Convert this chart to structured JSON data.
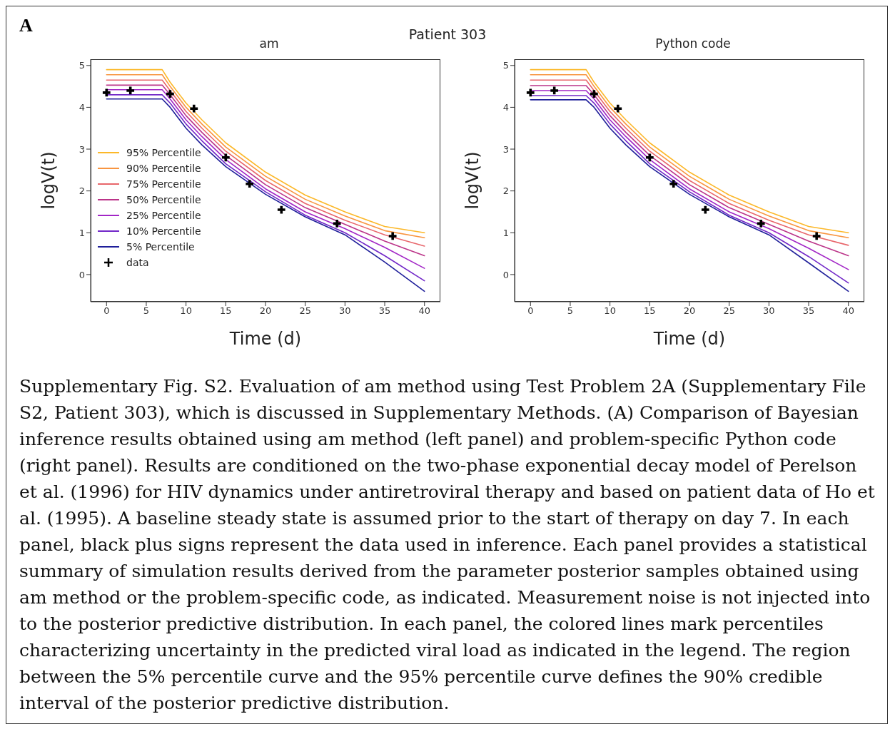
{
  "chart_data": [
    {
      "type": "line",
      "title": "am",
      "xlabel": "Time (d)",
      "ylabel": "logV(t)",
      "xlim": [
        -2,
        42
      ],
      "xticks": [
        0,
        5,
        10,
        15,
        20,
        25,
        30,
        35,
        40
      ],
      "ylim": [
        -0.65,
        5.15
      ],
      "yticks": [
        0,
        1,
        2,
        3,
        4,
        5
      ],
      "legend": "left",
      "line_style": "solid",
      "marker": "none",
      "annotations": [
        "A",
        "Patient 303",
        "Supplementary Fig. S2. Evaluation of am method using Test Problem 2A (Supplementary File S2, Patient 303), which is discussed in Supplementary Methods. (A) Comparison of Bayesian inference results obtained using am method (left panel) and problem-specific Python code (right panel). Results are conditioned on the two-phase exponential decay model of Perelson et al. (1996) for HIV dynamics under antiretroviral therapy and based on patient data of Ho et al. (1995). A baseline steady state is assumed prior to the start of therapy on day 7. In each panel, black plus signs represent the data used in inference. Each panel provides a statistical summary of simulation results derived from the parameter posterior samples obtained using am method or the problem-specific code, as indicated. Measurement noise is not injected into to the posterior predictive distribution. In each panel, the colored lines mark percentiles characterizing uncertainty in the predicted viral load as indicated in the legend. The region between the 5% percentile curve and the 95% percentile curve defines the 90% credible interval of the posterior predictive distribution."
      ],
      "series": [
        {
          "name": "95% Percentile",
          "color": "#fcb829",
          "x": [
            0,
            7,
            8,
            10,
            12,
            15,
            20,
            25,
            30,
            35,
            40
          ],
          "values": [
            4.9,
            4.9,
            4.6,
            4.1,
            3.7,
            3.15,
            2.45,
            1.9,
            1.5,
            1.15,
            1.0
          ]
        },
        {
          "name": "90% Percentile",
          "color": "#f89540",
          "x": [
            0,
            7,
            8,
            10,
            12,
            15,
            20,
            25,
            30,
            35,
            40
          ],
          "values": [
            4.78,
            4.78,
            4.5,
            4.0,
            3.6,
            3.05,
            2.35,
            1.8,
            1.4,
            1.05,
            0.88
          ]
        },
        {
          "name": "75% Percentile",
          "color": "#e8666b",
          "x": [
            0,
            7,
            8,
            10,
            12,
            15,
            20,
            25,
            30,
            35,
            40
          ],
          "values": [
            4.65,
            4.65,
            4.4,
            3.9,
            3.5,
            2.95,
            2.25,
            1.7,
            1.3,
            0.95,
            0.68
          ]
        },
        {
          "name": "50% Percentile",
          "color": "#bb3489",
          "x": [
            0,
            7,
            8,
            10,
            12,
            15,
            20,
            25,
            30,
            35,
            40
          ],
          "values": [
            4.53,
            4.53,
            4.3,
            3.8,
            3.4,
            2.85,
            2.15,
            1.6,
            1.2,
            0.8,
            0.45
          ]
        },
        {
          "name": "25% Percentile",
          "color": "#a226c6",
          "x": [
            0,
            7,
            8,
            10,
            12,
            15,
            20,
            25,
            30,
            35,
            40
          ],
          "values": [
            4.42,
            4.42,
            4.2,
            3.7,
            3.3,
            2.75,
            2.05,
            1.5,
            1.1,
            0.65,
            0.15
          ]
        },
        {
          "name": "10% Percentile",
          "color": "#7228c8",
          "x": [
            0,
            7,
            8,
            10,
            12,
            15,
            20,
            25,
            30,
            35,
            40
          ],
          "values": [
            4.3,
            4.3,
            4.1,
            3.6,
            3.2,
            2.65,
            1.98,
            1.42,
            1.0,
            0.45,
            -0.15
          ]
        },
        {
          "name": "5% Percentile",
          "color": "#1f1f9a",
          "x": [
            0,
            7,
            8,
            10,
            12,
            15,
            20,
            25,
            30,
            35,
            40
          ],
          "values": [
            4.2,
            4.2,
            4.0,
            3.5,
            3.1,
            2.58,
            1.92,
            1.38,
            0.95,
            0.3,
            -0.4
          ]
        },
        {
          "name": "data",
          "type": "scatter",
          "marker": "cross",
          "color": "#000000",
          "x": [
            0,
            3,
            8,
            11,
            15,
            18,
            22,
            29,
            36
          ],
          "values": [
            4.35,
            4.4,
            4.32,
            3.97,
            2.8,
            2.17,
            1.55,
            1.22,
            0.92
          ]
        }
      ]
    },
    {
      "type": "line",
      "title": "Python code",
      "xlabel": "Time (d)",
      "ylabel": "logV(t)",
      "xlim": [
        -2,
        42
      ],
      "xticks": [
        0,
        5,
        10,
        15,
        20,
        25,
        30,
        35,
        40
      ],
      "ylim": [
        -0.65,
        5.15
      ],
      "yticks": [
        0,
        1,
        2,
        3,
        4,
        5
      ],
      "line_style": "solid",
      "marker": "none",
      "series": [
        {
          "color": "#fcb829",
          "x": [
            0,
            7,
            8,
            10,
            12,
            15,
            20,
            25,
            30,
            35,
            40
          ],
          "values": [
            4.9,
            4.9,
            4.6,
            4.1,
            3.7,
            3.15,
            2.45,
            1.9,
            1.5,
            1.15,
            1.0
          ]
        },
        {
          "color": "#f89540",
          "x": [
            0,
            7,
            8,
            10,
            12,
            15,
            20,
            25,
            30,
            35,
            40
          ],
          "values": [
            4.78,
            4.78,
            4.5,
            4.0,
            3.6,
            3.05,
            2.35,
            1.8,
            1.4,
            1.05,
            0.88
          ]
        },
        {
          "color": "#e8666b",
          "x": [
            0,
            7,
            8,
            10,
            12,
            15,
            20,
            25,
            30,
            35,
            40
          ],
          "values": [
            4.65,
            4.65,
            4.4,
            3.9,
            3.5,
            2.95,
            2.25,
            1.7,
            1.3,
            0.95,
            0.7
          ]
        },
        {
          "color": "#bb3489",
          "x": [
            0,
            7,
            8,
            10,
            12,
            15,
            20,
            25,
            30,
            35,
            40
          ],
          "values": [
            4.52,
            4.52,
            4.3,
            3.8,
            3.4,
            2.85,
            2.15,
            1.6,
            1.2,
            0.8,
            0.45
          ]
        },
        {
          "color": "#a226c6",
          "x": [
            0,
            7,
            8,
            10,
            12,
            15,
            20,
            25,
            30,
            35,
            40
          ],
          "values": [
            4.4,
            4.4,
            4.2,
            3.7,
            3.3,
            2.75,
            2.05,
            1.5,
            1.1,
            0.63,
            0.12
          ]
        },
        {
          "color": "#7228c8",
          "x": [
            0,
            7,
            8,
            10,
            12,
            15,
            20,
            25,
            30,
            35,
            40
          ],
          "values": [
            4.28,
            4.28,
            4.1,
            3.6,
            3.2,
            2.65,
            1.98,
            1.42,
            1.0,
            0.43,
            -0.2
          ]
        },
        {
          "color": "#1f1f9a",
          "x": [
            0,
            7,
            8,
            10,
            12,
            15,
            20,
            25,
            30,
            35,
            40
          ],
          "values": [
            4.18,
            4.18,
            4.0,
            3.5,
            3.1,
            2.58,
            1.92,
            1.38,
            0.95,
            0.28,
            -0.4
          ]
        },
        {
          "type": "scatter",
          "marker": "cross",
          "color": "#000000",
          "x": [
            0,
            3,
            8,
            11,
            15,
            18,
            22,
            29,
            36
          ],
          "values": [
            4.35,
            4.4,
            4.32,
            3.97,
            2.8,
            2.17,
            1.55,
            1.22,
            0.92
          ]
        }
      ]
    }
  ]
}
